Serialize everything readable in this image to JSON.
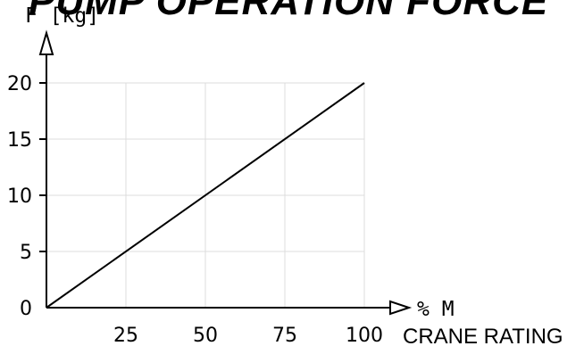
{
  "chart_data": {
    "type": "line",
    "title": "PUMP OPERATION FORCE",
    "ylabel": "F [kg]",
    "xlabel": "% M",
    "xlabel_secondary": "CRANE RATING",
    "xlim": [
      0,
      100
    ],
    "ylim": [
      0,
      20
    ],
    "x_ticks": [
      25,
      50,
      75,
      100
    ],
    "y_ticks": [
      0,
      5,
      10,
      15,
      20
    ],
    "grid": true,
    "series": [
      {
        "x": [
          0,
          100
        ],
        "y": [
          0,
          20
        ],
        "color": "#000000"
      }
    ]
  }
}
